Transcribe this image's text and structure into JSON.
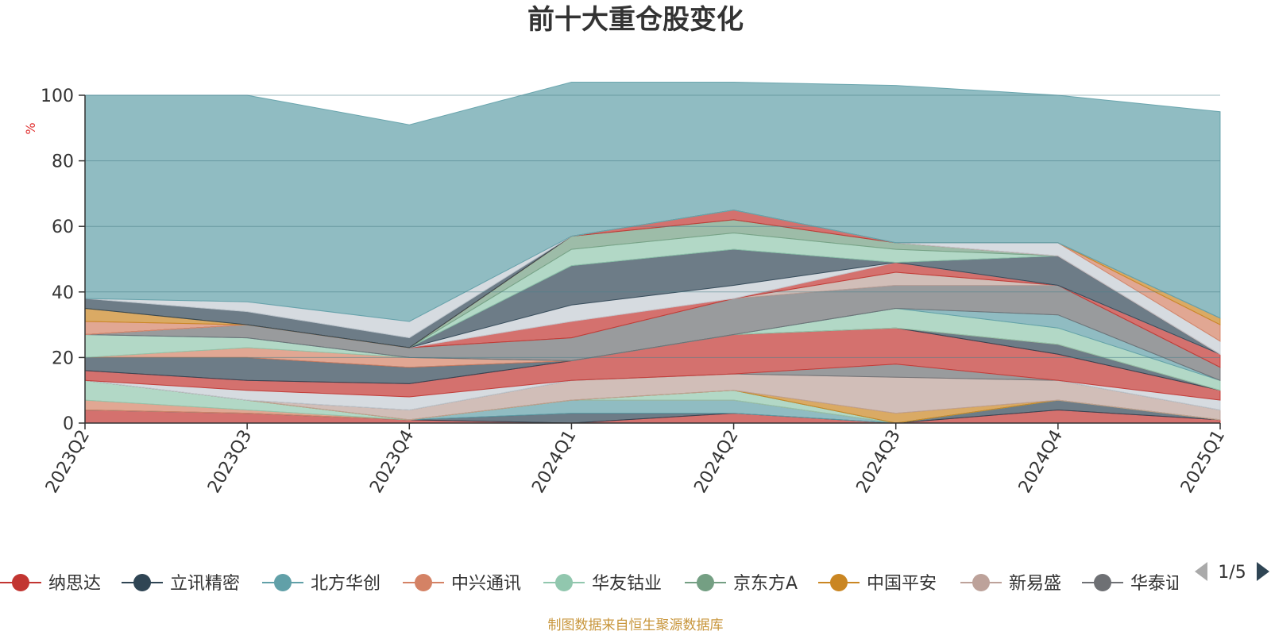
{
  "chart_data": {
    "type": "area",
    "title": "前十大重仓股变化",
    "ylabel": "%",
    "ylim": [
      0,
      100
    ],
    "yticks": [
      0,
      20,
      40,
      60,
      80,
      100
    ],
    "categories": [
      "2023Q2",
      "2023Q3",
      "2023Q4",
      "2024Q1",
      "2024Q2",
      "2024Q3",
      "2024Q4",
      "2025Q1"
    ],
    "grid": true,
    "series": [
      {
        "name": "纳思达",
        "color": "#c23531",
        "values": [
          4,
          3,
          1,
          0,
          3,
          0,
          4,
          1
        ]
      },
      {
        "name": "立讯精密",
        "color": "#2f4554",
        "values": [
          0,
          0,
          0,
          3,
          0,
          0,
          3,
          0
        ]
      },
      {
        "name": "北方华创",
        "color": "#61a0a8",
        "values": [
          0,
          0,
          0,
          4,
          4,
          0,
          0,
          0
        ]
      },
      {
        "name": "中兴通讯",
        "color": "#d48265",
        "values": [
          3,
          1,
          0,
          0,
          0,
          0,
          0,
          0
        ]
      },
      {
        "name": "华友钴业",
        "color": "#91c7ae",
        "values": [
          6,
          3,
          0,
          0,
          3,
          0,
          0,
          0
        ]
      },
      {
        "name": "京东方A",
        "color": "#749f83",
        "values": [
          0,
          0,
          0,
          0,
          0,
          0,
          0,
          0
        ]
      },
      {
        "name": "中国平安",
        "color": "#ca8622",
        "values": [
          0,
          0,
          0,
          0,
          0,
          3,
          0,
          0
        ]
      },
      {
        "name": "新易盛",
        "color": "#bda29a",
        "values": [
          0,
          0,
          3,
          6,
          5,
          11,
          6,
          3
        ]
      },
      {
        "name": "华泰证券",
        "color": "#6e7074",
        "values": [
          0,
          0,
          0,
          0,
          0,
          4,
          0,
          0
        ]
      },
      {
        "name": "",
        "color": "#c4ccd3",
        "values": [
          0,
          3,
          4,
          0,
          0,
          0,
          0,
          3
        ]
      },
      {
        "name": "",
        "color": "#c23531",
        "values": [
          3,
          3,
          4,
          6,
          12,
          11,
          8,
          3
        ]
      },
      {
        "name": "",
        "color": "#2f4554",
        "values": [
          4,
          7,
          5,
          0,
          0,
          0,
          3,
          0
        ]
      },
      {
        "name": "",
        "color": "#d48265",
        "values": [
          0,
          3,
          3,
          0,
          0,
          0,
          0,
          0
        ]
      },
      {
        "name": "",
        "color": "#91c7ae",
        "values": [
          7,
          3,
          0,
          0,
          0,
          6,
          5,
          3
        ]
      },
      {
        "name": "",
        "color": "#61a0a8",
        "values": [
          0,
          0,
          0,
          0,
          0,
          0,
          4,
          0
        ]
      },
      {
        "name": "",
        "color": "#6e7074",
        "values": [
          0,
          4,
          3,
          7,
          11,
          7,
          9,
          4
        ]
      },
      {
        "name": "",
        "color": "#bda29a",
        "values": [
          0,
          0,
          0,
          0,
          0,
          4,
          0,
          0
        ]
      },
      {
        "name": "",
        "color": "#c23531",
        "values": [
          0,
          0,
          0,
          5,
          0,
          3,
          0,
          4
        ]
      },
      {
        "name": "",
        "color": "#c4ccd3",
        "values": [
          0,
          0,
          0,
          5,
          4,
          0,
          0,
          0
        ]
      },
      {
        "name": "",
        "color": "#2f4554",
        "values": [
          0,
          0,
          0,
          12,
          11,
          0,
          9,
          0
        ]
      },
      {
        "name": "",
        "color": "#91c7ae",
        "values": [
          0,
          0,
          0,
          5,
          5,
          4,
          0,
          0
        ]
      },
      {
        "name": "",
        "color": "#749f83",
        "values": [
          0,
          0,
          0,
          4,
          4,
          2,
          0,
          0
        ]
      },
      {
        "name": "",
        "color": "#c23531",
        "values": [
          0,
          0,
          0,
          0,
          3,
          0,
          0,
          0
        ]
      },
      {
        "name": "",
        "color": "#c4ccd3",
        "values": [
          0,
          0,
          0,
          0,
          0,
          0,
          4,
          4
        ]
      },
      {
        "name": "",
        "color": "#d48265",
        "values": [
          4,
          0,
          0,
          0,
          0,
          0,
          0,
          5
        ]
      },
      {
        "name": "",
        "color": "#ca8622",
        "values": [
          4,
          0,
          0,
          0,
          0,
          0,
          0,
          2
        ]
      },
      {
        "name": "",
        "color": "#2f4554",
        "values": [
          3,
          4,
          3,
          0,
          0,
          0,
          0,
          0
        ]
      },
      {
        "name": "",
        "color": "#c4ccd3",
        "values": [
          0,
          3,
          5,
          0,
          0,
          0,
          0,
          0
        ]
      },
      {
        "name": "",
        "color": "#61a0a8",
        "values": [
          62,
          63,
          60,
          47,
          39,
          48,
          45,
          63
        ]
      }
    ],
    "legend": {
      "placement": "bottom",
      "page": "1/5",
      "items": [
        {
          "name": "纳思达",
          "color": "#c23531"
        },
        {
          "name": "立讯精密",
          "color": "#2f4554"
        },
        {
          "name": "北方华创",
          "color": "#61a0a8"
        },
        {
          "name": "中兴通讯",
          "color": "#d48265"
        },
        {
          "name": "华友钴业",
          "color": "#91c7ae"
        },
        {
          "name": "京东方A",
          "color": "#749f83"
        },
        {
          "name": "中国平安",
          "color": "#ca8622"
        },
        {
          "name": "新易盛",
          "color": "#bda29a"
        },
        {
          "name": "华泰证券",
          "color": "#6e7074"
        }
      ]
    },
    "source": "制图数据来自恒生聚源数据库"
  }
}
